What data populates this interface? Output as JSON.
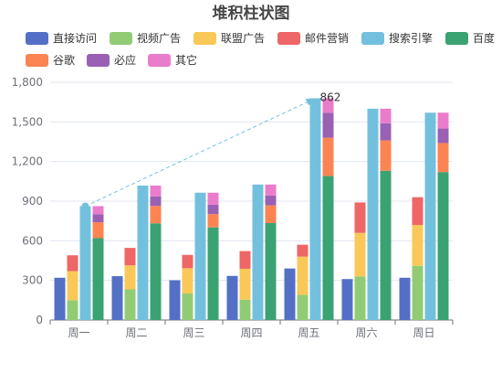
{
  "chart_data": {
    "type": "bar",
    "stacked": true,
    "title": "堆积柱状图",
    "categories": [
      "周一",
      "周二",
      "周三",
      "周四",
      "周五",
      "周六",
      "周日"
    ],
    "ylim": [
      0,
      1800
    ],
    "yticks": [
      "0",
      "300",
      "600",
      "900",
      "1,200",
      "1,500",
      "1,800"
    ],
    "grid": true,
    "legend_position": "top",
    "groups": [
      {
        "stack": "direct",
        "series": [
          {
            "name": "直接访问",
            "color": "#5470c6",
            "values": [
              320,
              332,
              301,
              334,
              390,
              310,
              320
            ]
          }
        ]
      },
      {
        "stack": "ad",
        "series": [
          {
            "name": "视频广告",
            "color": "#91cc75",
            "values": [
              150,
              232,
              201,
              154,
              190,
              330,
              410
            ]
          },
          {
            "name": "联盟广告",
            "color": "#fac858",
            "values": [
              220,
              182,
              191,
              234,
              290,
              330,
              310
            ]
          },
          {
            "name": "邮件营销",
            "color": "#ee6666",
            "values": [
              120,
              132,
              101,
              134,
              90,
              230,
              210
            ]
          }
        ]
      },
      {
        "stack": "search-total",
        "series": [
          {
            "name": "搜索引擎",
            "color": "#73c0de",
            "values": [
              862,
              1018,
              964,
              1026,
              1679,
              1600,
              1570
            ]
          }
        ]
      },
      {
        "stack": "search",
        "series": [
          {
            "name": "百度",
            "color": "#3ba272",
            "values": [
              620,
              732,
              701,
              734,
              1090,
              1130,
              1120
            ]
          },
          {
            "name": "谷歌",
            "color": "#fc8452",
            "values": [
              120,
              132,
              101,
              134,
              290,
              230,
              220
            ]
          },
          {
            "name": "必应",
            "color": "#9a60b4",
            "values": [
              60,
              72,
              71,
              74,
              190,
              130,
              110
            ]
          },
          {
            "name": "其它",
            "color": "#ea7ccc",
            "values": [
              62,
              82,
              91,
              84,
              109,
              110,
              120
            ]
          }
        ]
      }
    ],
    "legend": [
      {
        "name": "直接访问",
        "color": "#5470c6"
      },
      {
        "name": "视频广告",
        "color": "#91cc75"
      },
      {
        "name": "联盟广告",
        "color": "#fac858"
      },
      {
        "name": "邮件营销",
        "color": "#ee6666"
      },
      {
        "name": "搜索引擎",
        "color": "#73c0de"
      },
      {
        "name": "百度",
        "color": "#3ba272"
      },
      {
        "name": "谷歌",
        "color": "#fc8452"
      },
      {
        "name": "必应",
        "color": "#9a60b4"
      },
      {
        "name": "其它",
        "color": "#ea7ccc"
      }
    ],
    "markLine": {
      "series": "搜索引擎",
      "from_category": "周一",
      "from_value": 862,
      "to_category": "周五",
      "to_value": 1679,
      "label": "862",
      "color": "#73c0de"
    }
  }
}
